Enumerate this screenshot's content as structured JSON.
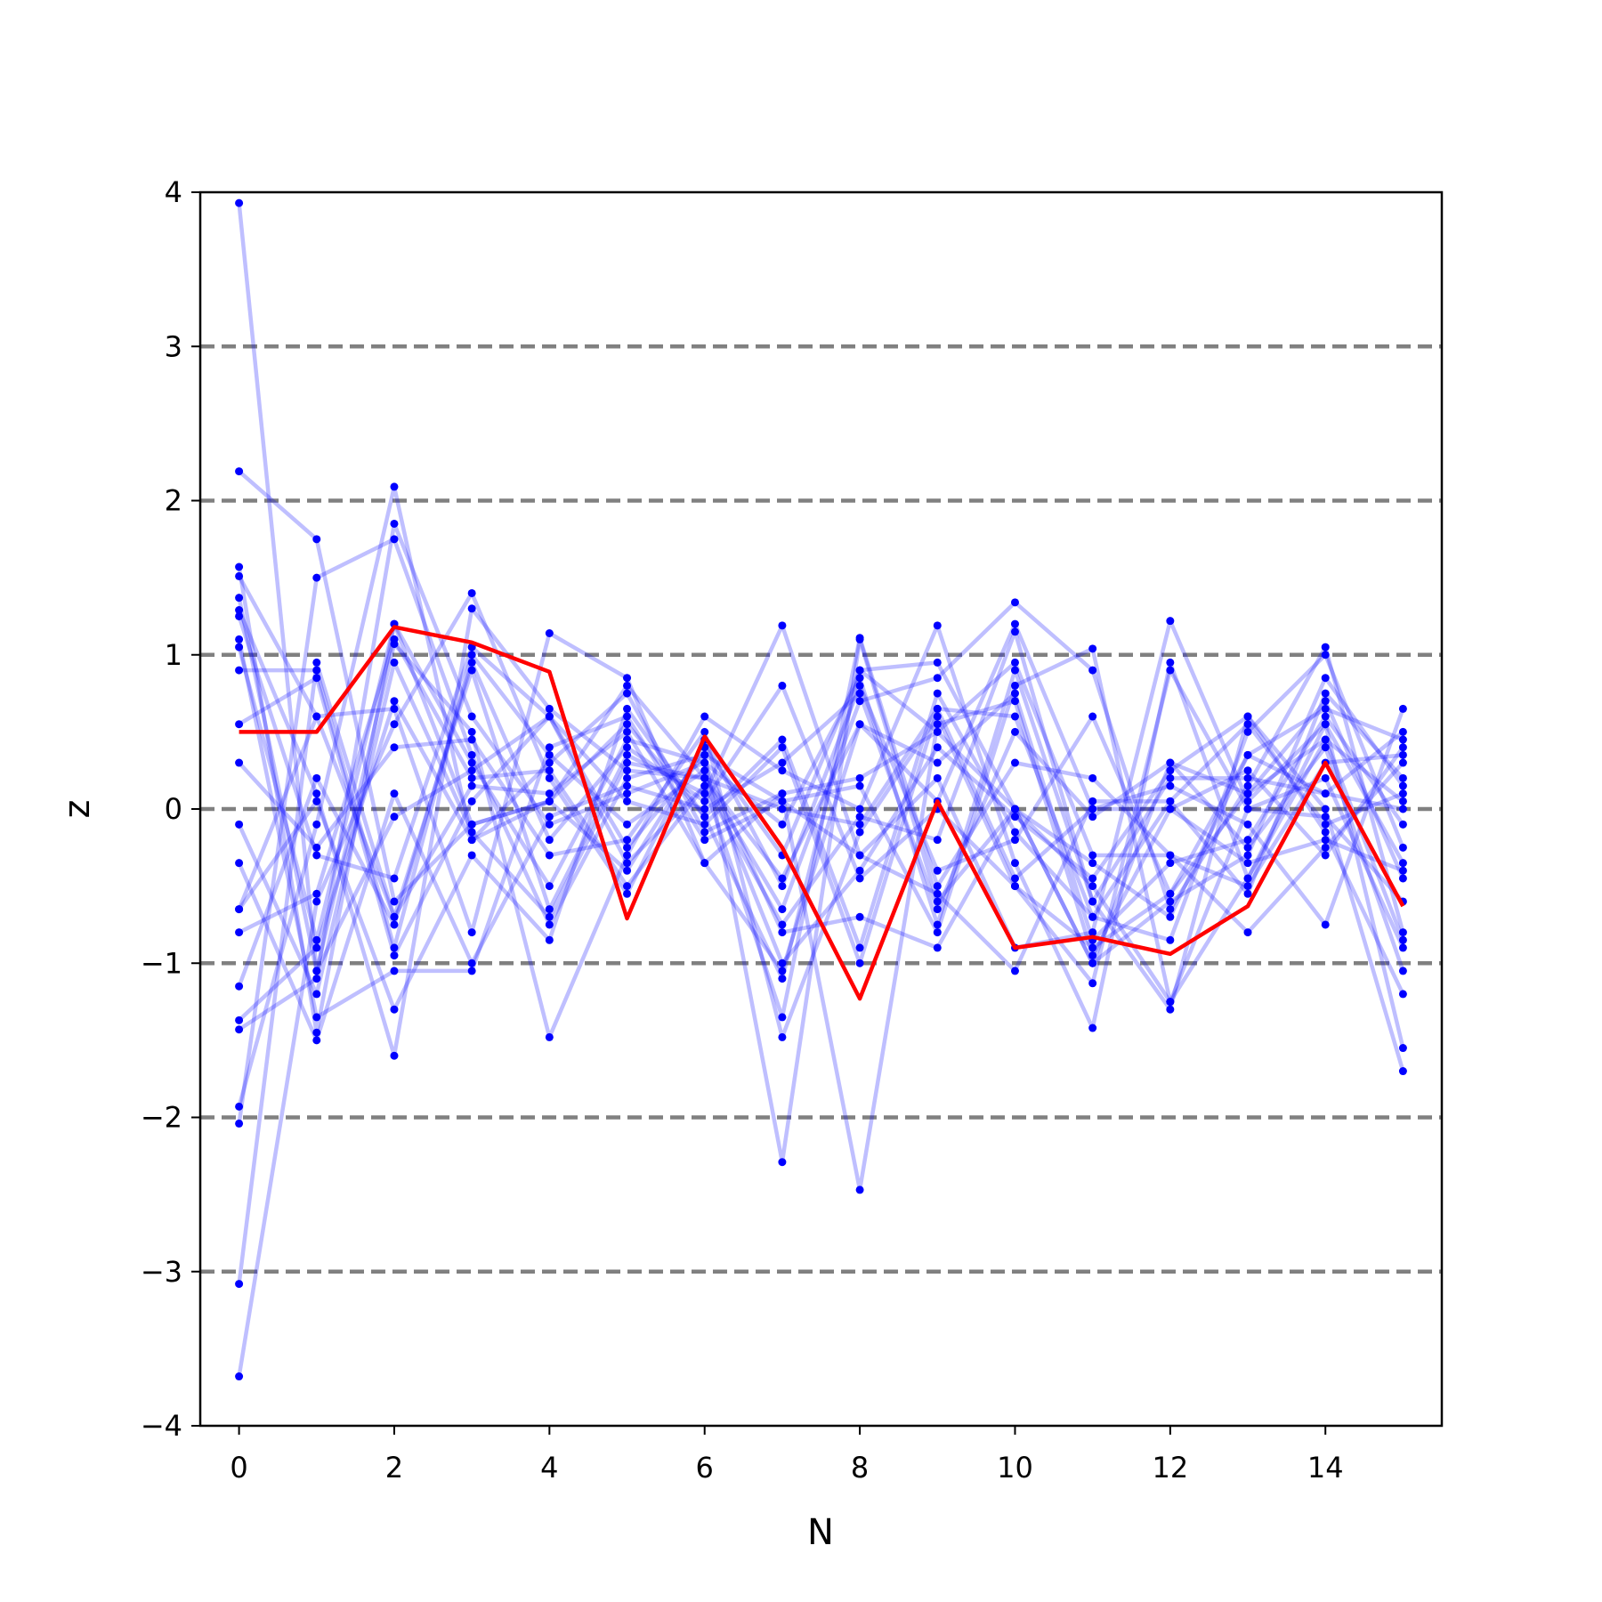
{
  "chart_data": {
    "type": "line",
    "title": "",
    "xlabel": "N",
    "ylabel": "z",
    "xlim": [
      -0.5,
      15.5
    ],
    "ylim": [
      -4,
      4
    ],
    "xticks": [
      0,
      2,
      4,
      6,
      8,
      10,
      12,
      14
    ],
    "xtick_labels": [
      "0",
      "2",
      "4",
      "6",
      "8",
      "10",
      "12",
      "14"
    ],
    "yticks": [
      -4,
      -3,
      -2,
      -1,
      0,
      1,
      2,
      3,
      4
    ],
    "ytick_labels": [
      "−4",
      "−3",
      "−2",
      "−1",
      "0",
      "1",
      "2",
      "3",
      "4"
    ],
    "reference_lines": [
      -3,
      -2,
      -1,
      0,
      1,
      2,
      3
    ],
    "reference_line_color": "#808080",
    "grid": false,
    "legend": "none",
    "x": [
      0,
      1,
      2,
      3,
      4,
      5,
      6,
      7,
      8,
      9,
      10,
      11,
      12,
      13,
      14,
      15
    ],
    "series": [
      {
        "values": [
          3.93,
          -1.05,
          -0.05,
          0.25,
          0.6,
          0.05,
          -0.1,
          0.4,
          -1.0,
          0.65,
          0.6,
          -0.7,
          0.05,
          0.55,
          -0.1,
          0.1
        ],
        "color": "#0000ff",
        "opacity": 0.25
      },
      {
        "values": [
          -3.68,
          -0.6,
          0.55,
          1.4,
          0.2,
          -0.55,
          0.45,
          -0.5,
          0.8,
          -0.4,
          -0.2,
          0.6,
          -0.55,
          0.1,
          0.7,
          -0.45
        ],
        "color": "#0000ff",
        "opacity": 0.25
      },
      {
        "values": [
          -3.08,
          0.95,
          -0.7,
          0.9,
          -0.65,
          0.35,
          0.1,
          1.19,
          -0.3,
          0.2,
          -0.9,
          -0.8,
          1.22,
          0.05,
          0.55,
          -1.55
        ],
        "color": "#0000ff",
        "opacity": 0.25
      },
      {
        "values": [
          2.19,
          1.75,
          -0.6,
          -0.1,
          0.05,
          0.55,
          -0.05,
          -1.1,
          0.9,
          0.5,
          0.95,
          -0.3,
          -0.3,
          -0.5,
          0.3,
          0.35
        ],
        "color": "#0000ff",
        "opacity": 0.25
      },
      {
        "values": [
          -2.04,
          1.5,
          1.75,
          0.35,
          -0.75,
          0.2,
          0.35,
          -2.29,
          1.1,
          -0.6,
          0.0,
          -1.0,
          -0.6,
          -0.3,
          0.85,
          0.15
        ],
        "color": "#0000ff",
        "opacity": 0.25
      },
      {
        "values": [
          -1.93,
          -0.1,
          2.09,
          -0.2,
          0.3,
          0.75,
          -0.15,
          0.1,
          -2.47,
          0.55,
          0.7,
          -0.95,
          0.0,
          0.25,
          -0.3,
          0.4
        ],
        "color": "#0000ff",
        "opacity": 0.25
      },
      {
        "values": [
          1.57,
          -1.45,
          1.2,
          0.3,
          -0.5,
          0.45,
          0.3,
          -0.1,
          0.85,
          -0.75,
          0.9,
          -0.6,
          -1.3,
          0.6,
          0.0,
          -1.7
        ],
        "color": "#0000ff",
        "opacity": 0.25
      },
      {
        "values": [
          1.51,
          0.6,
          0.65,
          -0.8,
          1.14,
          0.85,
          -0.35,
          -1.05,
          0.55,
          0.05,
          1.2,
          0.0,
          0.15,
          -0.1,
          -0.75,
          0.65
        ],
        "color": "#0000ff",
        "opacity": 0.25
      },
      {
        "values": [
          1.37,
          -1.05,
          1.07,
          0.5,
          -1.48,
          -0.3,
          0.6,
          0.25,
          0.0,
          1.19,
          -0.35,
          -1.42,
          0.95,
          -0.45,
          0.45,
          0.05
        ],
        "color": "#0000ff",
        "opacity": 0.25
      },
      {
        "values": [
          1.29,
          0.1,
          -1.6,
          1.3,
          0.65,
          0.25,
          0.2,
          -0.65,
          0.7,
          0.85,
          1.34,
          0.9,
          -0.65,
          0.15,
          1.05,
          -0.8
        ],
        "color": "#0000ff",
        "opacity": 0.25
      },
      {
        "values": [
          1.1,
          -1.35,
          -1.05,
          -1.05,
          0.4,
          0.6,
          -0.2,
          0.05,
          0.15,
          -0.8,
          0.8,
          1.04,
          -1.25,
          -0.45,
          0.55,
          -0.35
        ],
        "color": "#0000ff",
        "opacity": 0.25
      },
      {
        "values": [
          0.9,
          0.9,
          -0.9,
          1.0,
          0.35,
          -0.1,
          0.25,
          -1.0,
          -0.4,
          0.4,
          -0.05,
          -0.45,
          0.25,
          0.6,
          -0.15,
          -1.2
        ],
        "color": "#0000ff",
        "opacity": 0.25
      },
      {
        "values": [
          0.3,
          -0.25,
          0.4,
          0.45,
          -0.3,
          -0.2,
          0.5,
          -1.48,
          -0.15,
          0.6,
          -0.5,
          -0.9,
          -0.55,
          0.35,
          0.1,
          0.0
        ],
        "color": "#0000ff",
        "opacity": 0.25
      },
      {
        "values": [
          -0.35,
          -1.5,
          0.1,
          -1.0,
          -0.05,
          0.15,
          0.0,
          0.3,
          0.75,
          -0.65,
          0.5,
          -0.05,
          0.3,
          -0.25,
          0.4,
          -1.05
        ],
        "color": "#0000ff",
        "opacity": 0.25
      },
      {
        "values": [
          -0.65,
          0.05,
          -1.3,
          -0.3,
          -0.85,
          0.65,
          -0.05,
          0.45,
          -0.9,
          0.75,
          -0.15,
          -0.7,
          -0.85,
          0.5,
          1.0,
          -0.25
        ],
        "color": "#0000ff",
        "opacity": 0.25
      },
      {
        "values": [
          -0.8,
          -0.55,
          1.1,
          0.2,
          0.25,
          -0.5,
          0.15,
          -1.35,
          1.11,
          -0.5,
          0.3,
          0.2,
          -0.3,
          -0.8,
          -0.25,
          0.3
        ],
        "color": "#0000ff",
        "opacity": 0.25
      },
      {
        "values": [
          -1.15,
          0.2,
          -0.75,
          0.95,
          -0.2,
          0.4,
          0.05,
          0.8,
          -0.45,
          0.0,
          -0.5,
          -1.13,
          0.9,
          0.0,
          0.2,
          -0.9
        ],
        "color": "#0000ff",
        "opacity": 0.25
      },
      {
        "values": [
          -1.37,
          -0.9,
          0.7,
          -0.2,
          0.05,
          -0.4,
          0.4,
          -0.3,
          0.9,
          0.95,
          0.0,
          -0.35,
          -0.7,
          0.35,
          0.65,
          0.45
        ],
        "color": "#0000ff",
        "opacity": 0.25
      },
      {
        "values": [
          -1.43,
          -1.1,
          1.85,
          0.6,
          -0.1,
          0.1,
          0.3,
          -0.8,
          -0.7,
          -0.9,
          0.0,
          -0.5,
          -1.25,
          0.0,
          -0.05,
          -0.6
        ],
        "color": "#0000ff",
        "opacity": 0.25
      },
      {
        "values": [
          0.55,
          0.85,
          -0.95,
          0.05,
          0.6,
          -0.25,
          0.35,
          0.05,
          -0.3,
          -0.55,
          -1.05,
          0.05,
          0.05,
          -0.55,
          0.75,
          0.2
        ],
        "color": "#0000ff",
        "opacity": 0.25
      },
      {
        "values": [
          -0.1,
          -1.2,
          0.95,
          -0.15,
          -0.7,
          0.3,
          0.2,
          -0.45,
          0.55,
          0.3,
          0.75,
          -0.85,
          -0.35,
          -0.2,
          0.6,
          -0.1
        ],
        "color": "#0000ff",
        "opacity": 0.25
      },
      {
        "values": [
          1.25,
          -0.3,
          -0.45,
          1.05,
          0.6,
          -0.35,
          0.15,
          -0.75,
          -0.05,
          -0.2,
          1.15,
          -0.6,
          0.2,
          0.2,
          0.1,
          0.5
        ],
        "color": "#0000ff",
        "opacity": 0.25
      },
      {
        "values": [
          1.05,
          -0.85,
          1.2,
          -0.1,
          0.05,
          0.8,
          0.2,
          0.0,
          -0.1,
          0.65,
          -0.45,
          0.0,
          0.0,
          -0.35,
          -0.2,
          -0.4
        ],
        "color": "#0000ff",
        "opacity": 0.25
      },
      {
        "values": [
          -0.65,
          0.6,
          -0.7,
          0.15,
          0.1,
          0.5,
          -0.35,
          0.1,
          0.2,
          0.5,
          0.0,
          -1.0,
          0.3,
          0.1,
          0.45,
          -0.85
        ],
        "color": "#0000ff",
        "opacity": 0.25
      },
      {
        "values": [
          0.5,
          0.5,
          1.18,
          1.08,
          0.89,
          -0.71,
          0.47,
          -0.25,
          -1.23,
          0.05,
          -0.9,
          -0.83,
          -0.94,
          -0.63,
          0.3,
          -0.63
        ],
        "name": "",
        "color": "#ff0000",
        "opacity": 1,
        "highlight": true
      }
    ]
  }
}
